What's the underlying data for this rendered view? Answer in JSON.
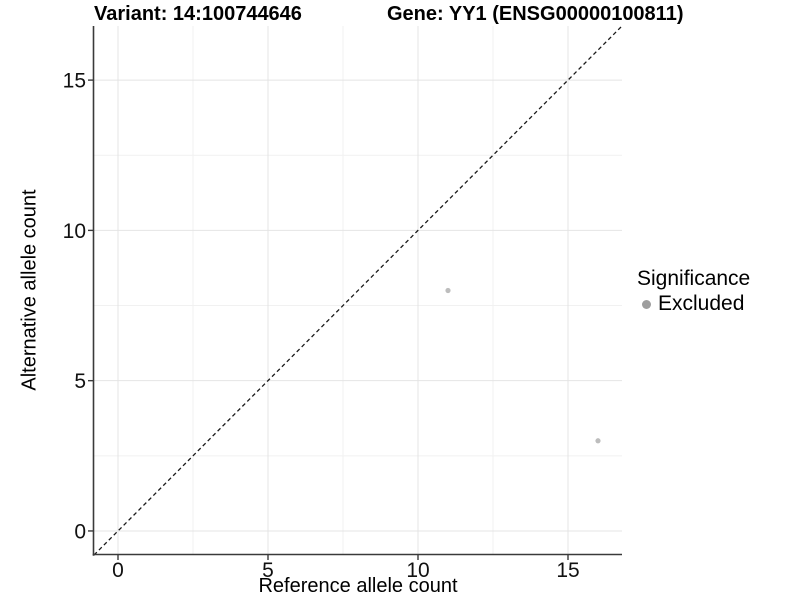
{
  "titles": {
    "variant": "Variant: 14:100744646",
    "gene": "Gene: YY1 (ENSG00000100811)"
  },
  "axis": {
    "x_title": "Reference allele count",
    "y_title": "Alternative allele count"
  },
  "legend": {
    "title": "Significance",
    "items": [
      {
        "label": "Excluded",
        "key_color": "#9e9e9e"
      }
    ]
  },
  "chart_data": {
    "type": "scatter",
    "title_left": "Variant: 14:100744646",
    "title_right": "Gene: YY1 (ENSG00000100811)",
    "xlabel": "Reference allele count",
    "ylabel": "Alternative allele count",
    "xlim": [
      -0.8,
      16.8
    ],
    "ylim": [
      -0.8,
      16.8
    ],
    "x_major_ticks": [
      0,
      5,
      10,
      15
    ],
    "y_major_ticks": [
      0,
      5,
      10,
      15
    ],
    "x_minor_ticks": [
      2.5,
      7.5,
      12.5
    ],
    "y_minor_ticks": [
      2.5,
      7.5,
      12.5
    ],
    "grid": "major+minor",
    "legend_position": "right",
    "series": [
      {
        "name": "Excluded",
        "color": "#bdbdbd",
        "points": [
          [
            11,
            8
          ],
          [
            16,
            3
          ]
        ]
      }
    ],
    "reference_line": {
      "kind": "identity y=x",
      "style": "dashed",
      "color": "#1a1a1a"
    }
  },
  "colors": {
    "background": "#ffffff",
    "grid_major": "#e4e4e4",
    "grid_minor": "#f1f1f1",
    "axis_line": "#3a3a3a",
    "tick_text": "#111111",
    "point": "#bdbdbd",
    "legend_key": "#9e9e9e"
  }
}
